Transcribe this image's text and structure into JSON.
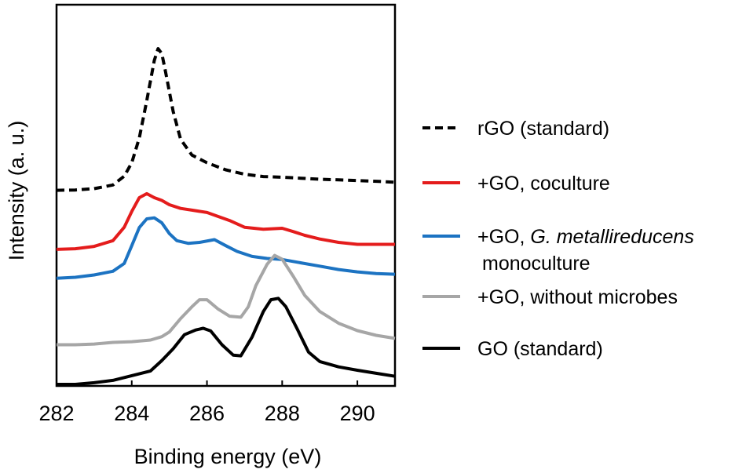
{
  "chart_data": {
    "type": "line",
    "title": "",
    "xlabel": "Binding energy (eV)",
    "ylabel": "Intensity (a. u.)",
    "xlim": [
      282,
      291
    ],
    "ylim": [
      0,
      100
    ],
    "xticks": [
      282,
      284,
      286,
      288,
      290
    ],
    "yticks": [],
    "grid": false,
    "legend_position": "right",
    "series": [
      {
        "name": "rGO (standard)",
        "color": "#000000",
        "dash": "dashed",
        "x": [
          282.0,
          282.5,
          283.0,
          283.5,
          283.8,
          284.0,
          284.2,
          284.4,
          284.6,
          284.7,
          284.8,
          284.9,
          285.1,
          285.3,
          285.6,
          286.0,
          286.5,
          287.0,
          287.5,
          288.0,
          288.5,
          289.0,
          289.5,
          290.0,
          290.5,
          291.0
        ],
        "y": [
          57.8,
          57.9,
          58.3,
          59.4,
          62.0,
          66.0,
          73.4,
          84.5,
          96.5,
          100.0,
          98.5,
          93.0,
          81.3,
          73.0,
          68.3,
          66.0,
          63.9,
          62.6,
          61.9,
          61.7,
          61.4,
          61.1,
          60.9,
          60.7,
          60.5,
          60.2
        ]
      },
      {
        "name": "+GO, coculture",
        "color": "#e41c1c",
        "dash": "solid",
        "x": [
          282.0,
          282.5,
          283.0,
          283.5,
          283.8,
          284.0,
          284.2,
          284.4,
          284.6,
          284.8,
          285.0,
          285.3,
          285.6,
          286.0,
          286.3,
          286.6,
          287.0,
          287.5,
          288.0,
          288.3,
          288.6,
          289.0,
          289.5,
          290.0,
          290.5,
          291.0
        ],
        "y": [
          40.2,
          40.4,
          41.1,
          42.8,
          46.8,
          51.5,
          55.6,
          56.8,
          55.6,
          54.8,
          53.5,
          52.4,
          51.9,
          51.2,
          50.0,
          48.8,
          46.8,
          46.2,
          46.5,
          45.5,
          44.4,
          43.3,
          42.3,
          41.7,
          41.7,
          41.7
        ]
      },
      {
        "name": "+GO, G. metallireducens monoculture",
        "color": "#1c73c2",
        "dash": "solid",
        "x": [
          282.0,
          282.5,
          283.0,
          283.5,
          283.8,
          284.0,
          284.2,
          284.4,
          284.6,
          284.8,
          285.0,
          285.2,
          285.5,
          285.8,
          286.2,
          286.5,
          286.8,
          287.2,
          287.6,
          288.0,
          288.5,
          289.0,
          289.5,
          290.0,
          290.5,
          291.0
        ],
        "y": [
          31.6,
          31.9,
          32.6,
          33.7,
          36.0,
          41.3,
          46.7,
          49.3,
          49.6,
          48.1,
          44.9,
          42.8,
          42.0,
          42.3,
          43.1,
          41.3,
          39.6,
          38.1,
          37.5,
          37.2,
          36.2,
          35.2,
          34.2,
          33.5,
          33.0,
          32.8
        ]
      },
      {
        "name": "+GO, without microbes",
        "color": "#a6a6a6",
        "dash": "solid",
        "x": [
          282.0,
          282.5,
          283.0,
          283.5,
          284.0,
          284.5,
          284.8,
          285.0,
          285.3,
          285.6,
          285.8,
          286.0,
          286.3,
          286.6,
          286.9,
          287.1,
          287.3,
          287.6,
          287.8,
          288.0,
          288.3,
          288.6,
          289.0,
          289.5,
          290.0,
          290.5,
          291.0
        ],
        "y": [
          11.8,
          11.8,
          12.0,
          12.5,
          12.7,
          13.2,
          14.2,
          15.6,
          19.6,
          23.1,
          25.2,
          25.2,
          22.4,
          20.3,
          20.0,
          23.1,
          29.4,
          35.8,
          38.4,
          37.3,
          32.1,
          26.5,
          21.7,
          18.2,
          16.0,
          14.6,
          13.7
        ]
      },
      {
        "name": "GO (standard)",
        "color": "#000000",
        "dash": "solid",
        "x": [
          282.0,
          282.5,
          283.0,
          283.5,
          284.0,
          284.5,
          284.8,
          285.1,
          285.4,
          285.7,
          285.9,
          286.1,
          286.4,
          286.7,
          286.9,
          287.2,
          287.5,
          287.7,
          287.9,
          288.1,
          288.4,
          288.7,
          289.0,
          289.5,
          290.0,
          290.5,
          291.0
        ],
        "y": [
          0.0,
          0.0,
          0.5,
          1.2,
          2.6,
          4.0,
          7.1,
          10.6,
          14.8,
          16.2,
          16.7,
          15.9,
          11.8,
          8.7,
          8.5,
          14.1,
          21.7,
          25.2,
          25.6,
          23.1,
          16.5,
          9.6,
          6.8,
          5.2,
          4.2,
          3.3,
          2.4
        ]
      }
    ]
  },
  "legend": {
    "items": [
      {
        "key": "rgo",
        "text": "rGO (standard)"
      },
      {
        "key": "coculture",
        "text": "+GO, coculture"
      },
      {
        "key": "mono",
        "prefix": "+GO, ",
        "italic": "G. metallireducens",
        "line2": "monoculture"
      },
      {
        "key": "nomicrobes",
        "text": "+GO, without microbes"
      },
      {
        "key": "go",
        "text": "GO (standard)"
      }
    ]
  }
}
